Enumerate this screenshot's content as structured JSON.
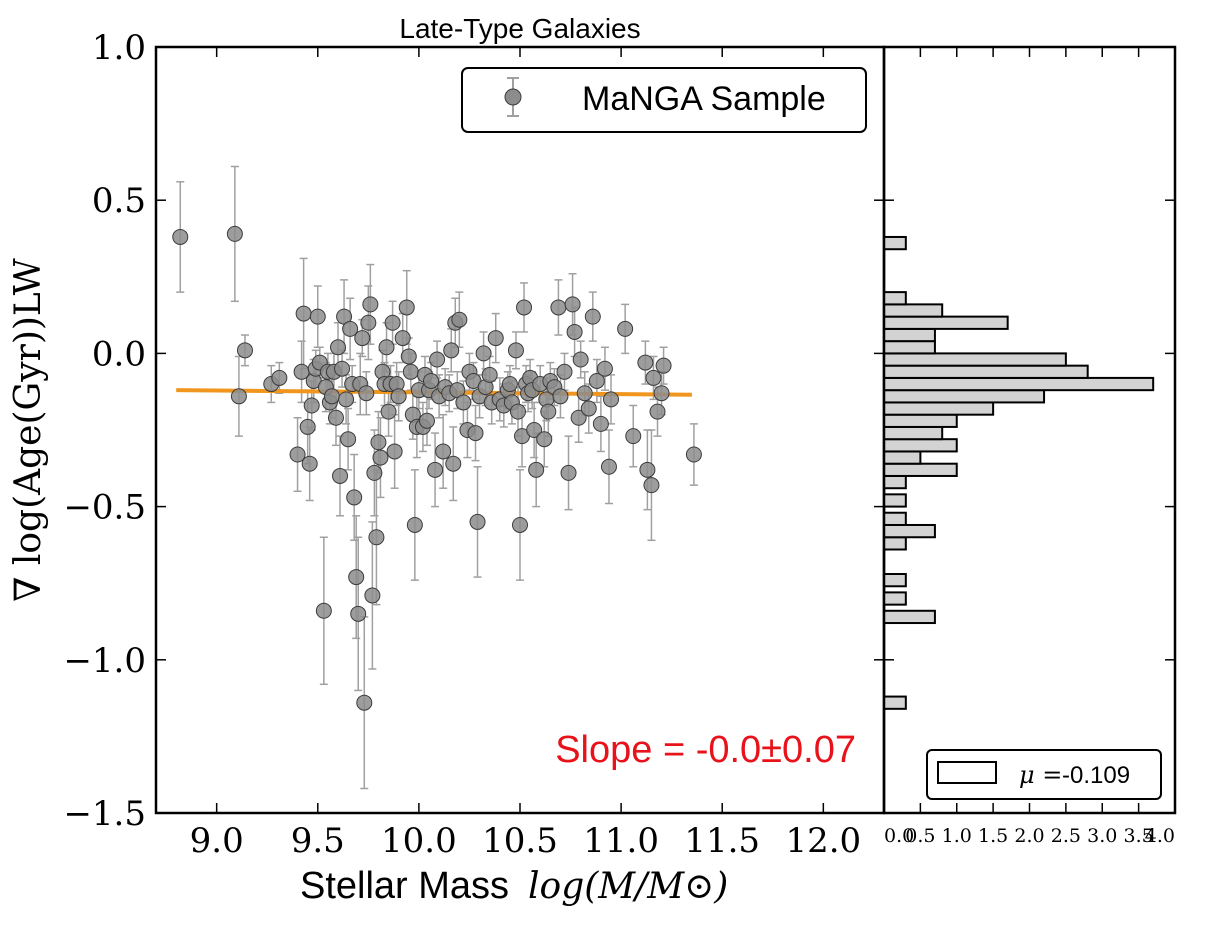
{
  "chart_data": [
    {
      "type": "scatter",
      "title": "Late-Type Galaxies",
      "xlabel_text": "Stellar Mass",
      "xlabel_math": "log(M/M⊙)",
      "ylabel": "∇ log(Age(Gyr))LW",
      "xlim": [
        8.7,
        12.3
      ],
      "ylim": [
        -1.5,
        1.0
      ],
      "xticks": [
        9.0,
        9.5,
        10.0,
        10.5,
        11.0,
        11.5,
        12.0
      ],
      "xtick_labels": [
        "9.0",
        "9.5",
        "10.0",
        "10.5",
        "11.0",
        "11.5",
        "12.0"
      ],
      "yticks": [
        1.0,
        0.5,
        0.0,
        -0.5,
        -1.0,
        -1.5
      ],
      "ytick_labels": [
        "1.0",
        "0.5",
        "0.0",
        "−0.5",
        "−1.0",
        "−1.5"
      ],
      "legend": {
        "label": "MaNGA Sample",
        "loc": "top-right"
      },
      "annotation": "Slope = -0.0±0.07",
      "fit_line": {
        "x": [
          8.8,
          11.35
        ],
        "y": [
          -0.12,
          -0.135
        ],
        "color": "#f0961e"
      },
      "colors": {
        "marker": "#8c8c8c",
        "errorbar": "#a0a0a0",
        "annotation": "#e8121a"
      },
      "points": [
        [
          8.82,
          0.38,
          0.18
        ],
        [
          9.09,
          0.39,
          0.22
        ],
        [
          9.11,
          -0.14,
          0.13
        ],
        [
          9.14,
          0.01,
          0.05
        ],
        [
          9.27,
          -0.1,
          0.06
        ],
        [
          9.31,
          -0.08,
          0.05
        ],
        [
          9.4,
          -0.33,
          0.12
        ],
        [
          9.42,
          -0.06,
          0.1
        ],
        [
          9.43,
          0.13,
          0.18
        ],
        [
          9.45,
          -0.24,
          0.12
        ],
        [
          9.46,
          -0.36,
          0.12
        ],
        [
          9.47,
          -0.17,
          0.08
        ],
        [
          9.48,
          -0.09,
          0.07
        ],
        [
          9.49,
          -0.05,
          0.06
        ],
        [
          9.5,
          0.12,
          0.1
        ],
        [
          9.51,
          -0.03,
          0.05
        ],
        [
          9.53,
          -0.84,
          0.24
        ],
        [
          9.54,
          -0.11,
          0.08
        ],
        [
          9.55,
          -0.06,
          0.06
        ],
        [
          9.56,
          -0.16,
          0.07
        ],
        [
          9.57,
          -0.14,
          0.07
        ],
        [
          9.58,
          -0.06,
          0.06
        ],
        [
          9.59,
          -0.21,
          0.09
        ],
        [
          9.6,
          0.02,
          0.08
        ],
        [
          9.61,
          -0.4,
          0.13
        ],
        [
          9.62,
          -0.05,
          0.06
        ],
        [
          9.63,
          0.12,
          0.12
        ],
        [
          9.64,
          -0.15,
          0.08
        ],
        [
          9.65,
          -0.28,
          0.1
        ],
        [
          9.66,
          0.08,
          0.1
        ],
        [
          9.67,
          -0.1,
          0.06
        ],
        [
          9.68,
          -0.47,
          0.14
        ],
        [
          9.69,
          -0.73,
          0.2
        ],
        [
          9.7,
          -0.85,
          0.25
        ],
        [
          9.71,
          -0.1,
          0.1
        ],
        [
          9.72,
          0.05,
          0.06
        ],
        [
          9.73,
          -1.14,
          0.28
        ],
        [
          9.74,
          -0.13,
          0.07
        ],
        [
          9.75,
          0.1,
          0.12
        ],
        [
          9.76,
          0.16,
          0.13
        ],
        [
          9.77,
          -0.79,
          0.24
        ],
        [
          9.78,
          -0.39,
          0.14
        ],
        [
          9.79,
          -0.6,
          0.22
        ],
        [
          9.8,
          -0.29,
          0.1
        ],
        [
          9.81,
          -0.34,
          0.13
        ],
        [
          9.82,
          -0.06,
          0.07
        ],
        [
          9.83,
          -0.1,
          0.07
        ],
        [
          9.84,
          0.02,
          0.08
        ],
        [
          9.85,
          -0.19,
          0.08
        ],
        [
          9.86,
          -0.1,
          0.06
        ],
        [
          9.87,
          0.1,
          0.07
        ],
        [
          9.88,
          -0.32,
          0.12
        ],
        [
          9.89,
          -0.1,
          0.07
        ],
        [
          9.9,
          -0.14,
          0.08
        ],
        [
          9.92,
          0.05,
          0.08
        ],
        [
          9.94,
          0.15,
          0.12
        ],
        [
          9.95,
          -0.01,
          0.06
        ],
        [
          9.96,
          -0.06,
          0.06
        ],
        [
          9.97,
          -0.2,
          0.08
        ],
        [
          9.98,
          -0.56,
          0.18
        ],
        [
          9.99,
          -0.24,
          0.1
        ],
        [
          10.0,
          -0.12,
          0.06
        ],
        [
          10.02,
          -0.24,
          0.08
        ],
        [
          10.03,
          -0.07,
          0.06
        ],
        [
          10.04,
          -0.22,
          0.08
        ],
        [
          10.05,
          -0.12,
          0.06
        ],
        [
          10.06,
          -0.09,
          0.06
        ],
        [
          10.08,
          -0.38,
          0.12
        ],
        [
          10.09,
          -0.02,
          0.06
        ],
        [
          10.1,
          -0.14,
          0.07
        ],
        [
          10.12,
          -0.32,
          0.12
        ],
        [
          10.13,
          -0.11,
          0.06
        ],
        [
          10.15,
          -0.13,
          0.06
        ],
        [
          10.16,
          0.01,
          0.07
        ],
        [
          10.17,
          -0.36,
          0.12
        ],
        [
          10.18,
          0.1,
          0.08
        ],
        [
          10.19,
          -0.12,
          0.06
        ],
        [
          10.2,
          0.11,
          0.09
        ],
        [
          10.22,
          -0.16,
          0.07
        ],
        [
          10.24,
          -0.25,
          0.09
        ],
        [
          10.25,
          -0.06,
          0.06
        ],
        [
          10.27,
          -0.09,
          0.06
        ],
        [
          10.28,
          -0.26,
          0.09
        ],
        [
          10.29,
          -0.55,
          0.18
        ],
        [
          10.3,
          -0.14,
          0.07
        ],
        [
          10.32,
          0.0,
          0.07
        ],
        [
          10.33,
          -0.11,
          0.06
        ],
        [
          10.35,
          -0.07,
          0.06
        ],
        [
          10.36,
          -0.16,
          0.07
        ],
        [
          10.38,
          0.05,
          0.08
        ],
        [
          10.4,
          -0.15,
          0.07
        ],
        [
          10.42,
          -0.17,
          0.07
        ],
        [
          10.44,
          -0.12,
          0.06
        ],
        [
          10.45,
          -0.1,
          0.06
        ],
        [
          10.46,
          -0.16,
          0.07
        ],
        [
          10.48,
          0.01,
          0.06
        ],
        [
          10.49,
          -0.19,
          0.08
        ],
        [
          10.5,
          -0.56,
          0.18
        ],
        [
          10.51,
          -0.27,
          0.1
        ],
        [
          10.52,
          0.15,
          0.08
        ],
        [
          10.53,
          -0.1,
          0.06
        ],
        [
          10.54,
          -0.13,
          0.06
        ],
        [
          10.55,
          -0.08,
          0.06
        ],
        [
          10.56,
          -0.12,
          0.06
        ],
        [
          10.57,
          -0.25,
          0.09
        ],
        [
          10.58,
          -0.38,
          0.12
        ],
        [
          10.6,
          -0.1,
          0.06
        ],
        [
          10.62,
          -0.28,
          0.09
        ],
        [
          10.63,
          -0.15,
          0.07
        ],
        [
          10.64,
          -0.19,
          0.08
        ],
        [
          10.65,
          -0.09,
          0.06
        ],
        [
          10.67,
          -0.11,
          0.06
        ],
        [
          10.69,
          0.15,
          0.09
        ],
        [
          10.7,
          -0.14,
          0.07
        ],
        [
          10.72,
          -0.06,
          0.06
        ],
        [
          10.74,
          -0.39,
          0.12
        ],
        [
          10.76,
          0.16,
          0.1
        ],
        [
          10.77,
          0.07,
          0.08
        ],
        [
          10.79,
          -0.21,
          0.08
        ],
        [
          10.8,
          -0.02,
          0.06
        ],
        [
          10.82,
          -0.13,
          0.07
        ],
        [
          10.84,
          -0.18,
          0.08
        ],
        [
          10.86,
          0.12,
          0.08
        ],
        [
          10.88,
          -0.09,
          0.07
        ],
        [
          10.9,
          -0.23,
          0.09
        ],
        [
          10.92,
          -0.05,
          0.07
        ],
        [
          10.94,
          -0.37,
          0.12
        ],
        [
          10.95,
          -0.15,
          0.08
        ],
        [
          11.02,
          0.08,
          0.08
        ],
        [
          11.06,
          -0.27,
          0.1
        ],
        [
          11.12,
          -0.03,
          0.07
        ],
        [
          11.13,
          -0.38,
          0.13
        ],
        [
          11.15,
          -0.43,
          0.18
        ],
        [
          11.16,
          -0.08,
          0.07
        ],
        [
          11.18,
          -0.19,
          0.08
        ],
        [
          11.2,
          -0.13,
          0.07
        ],
        [
          11.21,
          -0.04,
          0.06
        ],
        [
          11.36,
          -0.33,
          0.1
        ]
      ]
    },
    {
      "type": "histogram",
      "orientation": "horizontal",
      "xlim": [
        0.0,
        4.0
      ],
      "ylim": [
        -1.5,
        1.0
      ],
      "xticks": [
        0.0,
        0.5,
        1.0,
        1.5,
        2.0,
        2.5,
        3.0,
        3.5,
        4.0
      ],
      "xtick_labels": [
        "0.0",
        "0.5",
        "1.0",
        "1.5",
        "2.0",
        "2.5",
        "3.0",
        "3.5",
        "4.0"
      ],
      "legend": {
        "symbol": "μ =",
        "value": "-0.109",
        "loc": "bottom-right"
      },
      "bin_width": 0.04,
      "bins": [
        [
          -1.14,
          0.3
        ],
        [
          -0.86,
          0.7
        ],
        [
          -0.8,
          0.3
        ],
        [
          -0.74,
          0.3
        ],
        [
          -0.62,
          0.3
        ],
        [
          -0.58,
          0.7
        ],
        [
          -0.54,
          0.3
        ],
        [
          -0.48,
          0.3
        ],
        [
          -0.42,
          0.3
        ],
        [
          -0.38,
          1.0
        ],
        [
          -0.34,
          0.5
        ],
        [
          -0.3,
          1.0
        ],
        [
          -0.26,
          0.8
        ],
        [
          -0.22,
          1.0
        ],
        [
          -0.18,
          1.5
        ],
        [
          -0.14,
          2.2
        ],
        [
          -0.1,
          3.7
        ],
        [
          -0.06,
          2.8
        ],
        [
          -0.02,
          2.5
        ],
        [
          0.02,
          0.7
        ],
        [
          0.06,
          0.7
        ],
        [
          0.1,
          1.7
        ],
        [
          0.14,
          0.8
        ],
        [
          0.18,
          0.3
        ],
        [
          0.36,
          0.3
        ]
      ],
      "colors": {
        "fill": "#d3d3d3",
        "edge": "#000000"
      }
    }
  ]
}
